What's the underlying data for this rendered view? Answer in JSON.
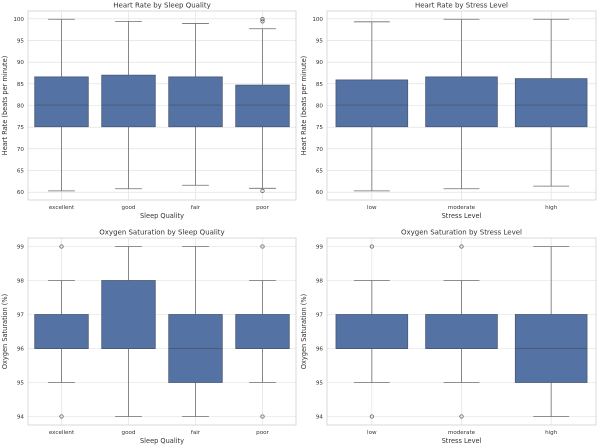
{
  "style": {
    "box_fill": "#5572a4",
    "box_edge": "#4a5a75",
    "whisker": "#6e6e6e",
    "grid": "#dedede",
    "spine": "#cfcfcf"
  },
  "chart_data": [
    {
      "type": "box",
      "title": "Heart Rate by Sleep Quality",
      "xlabel": "Sleep Quality",
      "ylabel": "Heart Rate (beats per minute)",
      "ylim": [
        58.2,
        101.8
      ],
      "yticks": [
        60,
        65,
        70,
        75,
        80,
        85,
        90,
        95,
        100
      ],
      "categories": [
        "excellent",
        "good",
        "fair",
        "poor"
      ],
      "boxes": [
        {
          "category": "excellent",
          "whislo": 60.3,
          "q1": 75.1,
          "med": 80.1,
          "q3": 86.6,
          "whishi": 99.9,
          "fliers": []
        },
        {
          "category": "good",
          "whislo": 60.8,
          "q1": 75.1,
          "med": 80.1,
          "q3": 87.0,
          "whishi": 99.4,
          "fliers": []
        },
        {
          "category": "fair",
          "whislo": 61.6,
          "q1": 75.1,
          "med": 80.1,
          "q3": 86.6,
          "whishi": 98.9,
          "fliers": []
        },
        {
          "category": "poor",
          "whislo": 60.9,
          "q1": 75.1,
          "med": 80.1,
          "q3": 84.7,
          "whishi": 97.7,
          "fliers": [
            60.3,
            99.4,
            99.9
          ]
        }
      ]
    },
    {
      "type": "box",
      "title": "Heart Rate by Stress Level",
      "xlabel": "Stress Level",
      "ylabel": "Heart Rate (beats per minute)",
      "ylim": [
        58.2,
        101.8
      ],
      "yticks": [
        60,
        65,
        70,
        75,
        80,
        85,
        90,
        95,
        100
      ],
      "categories": [
        "low",
        "moderate",
        "high"
      ],
      "boxes": [
        {
          "category": "low",
          "whislo": 60.3,
          "q1": 75.1,
          "med": 80.1,
          "q3": 85.9,
          "whishi": 99.3,
          "fliers": []
        },
        {
          "category": "moderate",
          "whislo": 60.8,
          "q1": 75.1,
          "med": 80.1,
          "q3": 86.6,
          "whishi": 99.9,
          "fliers": []
        },
        {
          "category": "high",
          "whislo": 61.4,
          "q1": 75.1,
          "med": 80.1,
          "q3": 86.2,
          "whishi": 99.9,
          "fliers": []
        }
      ]
    },
    {
      "type": "box",
      "title": "Oxygen Saturation by Sleep Quality",
      "xlabel": "Sleep Quality",
      "ylabel": "Oxygen Saturation (%)",
      "ylim": [
        93.75,
        99.25
      ],
      "yticks": [
        94,
        95,
        96,
        97,
        98,
        99
      ],
      "categories": [
        "excellent",
        "good",
        "fair",
        "poor"
      ],
      "boxes": [
        {
          "category": "excellent",
          "whislo": 95,
          "q1": 96,
          "med": 96,
          "q3": 97,
          "whishi": 98,
          "fliers": [
            94,
            99
          ]
        },
        {
          "category": "good",
          "whislo": 94,
          "q1": 96,
          "med": 96,
          "q3": 98,
          "whishi": 99,
          "fliers": []
        },
        {
          "category": "fair",
          "whislo": 94,
          "q1": 95,
          "med": 96,
          "q3": 97,
          "whishi": 99,
          "fliers": []
        },
        {
          "category": "poor",
          "whislo": 95,
          "q1": 96,
          "med": 96,
          "q3": 97,
          "whishi": 98,
          "fliers": [
            94,
            99
          ]
        }
      ]
    },
    {
      "type": "box",
      "title": "Oxygen Saturation by Stress Level",
      "xlabel": "Stress Level",
      "ylabel": "Oxygen Saturation (%)",
      "ylim": [
        93.75,
        99.25
      ],
      "yticks": [
        94,
        95,
        96,
        97,
        98,
        99
      ],
      "categories": [
        "low",
        "moderate",
        "high"
      ],
      "boxes": [
        {
          "category": "low",
          "whislo": 95,
          "q1": 96,
          "med": 96,
          "q3": 97,
          "whishi": 98,
          "fliers": [
            94,
            99
          ]
        },
        {
          "category": "moderate",
          "whislo": 95,
          "q1": 96,
          "med": 96,
          "q3": 97,
          "whishi": 98,
          "fliers": [
            94,
            99
          ]
        },
        {
          "category": "high",
          "whislo": 94,
          "q1": 95,
          "med": 96,
          "q3": 97,
          "whishi": 99,
          "fliers": []
        }
      ]
    }
  ]
}
